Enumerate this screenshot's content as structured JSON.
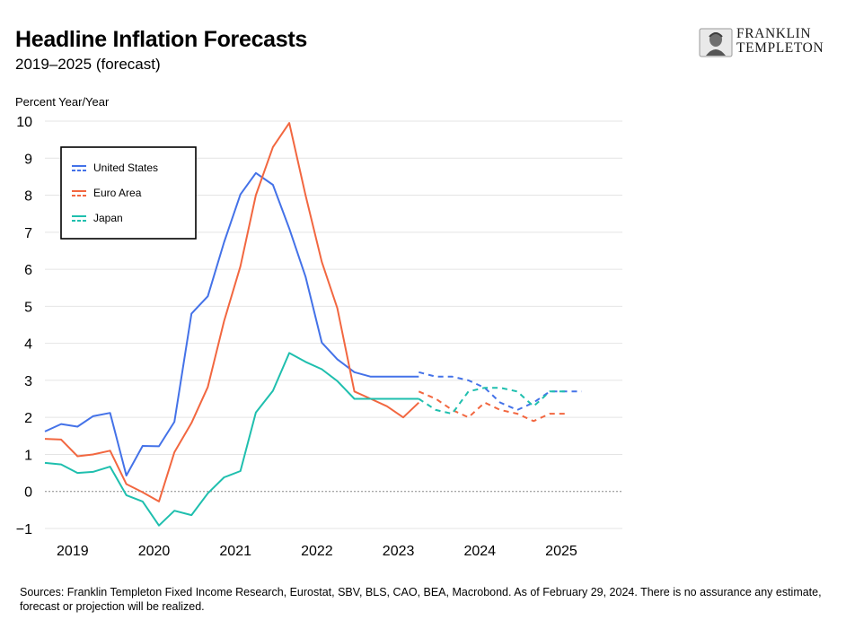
{
  "header": {
    "title": "Headline Inflation Forecasts",
    "subtitle": "2019–2025 (forecast)"
  },
  "brand": {
    "line1": "FRANKLIN",
    "line2": "TEMPLETON",
    "icon": "benjamin-franklin-portrait-icon"
  },
  "footer": {
    "sources": "Sources: Franklin Templeton Fixed Income Research, Eurostat, SBV, BLS, CAO, BEA, Macrobond. As of February 29, 2024. There is no assurance any estimate, forecast or projection will be realized."
  },
  "chart_data": {
    "type": "line",
    "title": "Headline Inflation Forecasts",
    "subtitle": "2019–2025 (forecast)",
    "ylabel": "Percent Year/Year",
    "xlabel": "",
    "ylim": [
      -1,
      10
    ],
    "yticks": [
      -1,
      0,
      1,
      2,
      3,
      4,
      5,
      6,
      7,
      8,
      9,
      10
    ],
    "xlim": [
      2018.66,
      2025.75
    ],
    "xticks": [
      {
        "label": "2019",
        "value": 2019.0
      },
      {
        "label": "2020",
        "value": 2020.0
      },
      {
        "label": "2021",
        "value": 2021.0
      },
      {
        "label": "2022",
        "value": 2022.0
      },
      {
        "label": "2023",
        "value": 2023.0
      },
      {
        "label": "2024",
        "value": 2024.0
      },
      {
        "label": "2025",
        "value": 2025.0
      }
    ],
    "grid": true,
    "zero_line": "dotted",
    "legend_position": "top-left",
    "legend_style": "solid-over-dashed",
    "series": [
      {
        "name": "United States",
        "color": "#4472e8",
        "actual": {
          "x": [
            2018.66,
            2018.86,
            2019.06,
            2019.25,
            2019.46,
            2019.66,
            2019.86,
            2020.06,
            2020.25,
            2020.46,
            2020.66,
            2020.86,
            2021.06,
            2021.25,
            2021.46,
            2021.66,
            2021.86,
            2022.06,
            2022.25,
            2022.46,
            2022.66,
            2022.86,
            2023.06,
            2023.25
          ],
          "y": [
            1.62,
            1.82,
            1.75,
            2.03,
            2.12,
            0.43,
            1.23,
            1.22,
            1.88,
            4.8,
            5.27,
            6.73,
            8.02,
            8.6,
            8.28,
            7.1,
            5.8,
            4.02,
            3.57,
            3.22,
            3.1,
            3.1,
            3.1,
            3.1
          ]
        },
        "forecast": {
          "x": [
            2023.25,
            2023.46,
            2023.66,
            2023.86,
            2024.06,
            2024.25,
            2024.46,
            2024.66,
            2024.86,
            2025.06,
            2025.25
          ],
          "y": [
            3.22,
            3.1,
            3.1,
            3.0,
            2.8,
            2.4,
            2.2,
            2.4,
            2.7,
            2.7,
            2.7
          ]
        }
      },
      {
        "name": "Euro Area",
        "color": "#f26740",
        "actual": {
          "x": [
            2018.66,
            2018.86,
            2019.06,
            2019.25,
            2019.46,
            2019.66,
            2019.86,
            2020.06,
            2020.25,
            2020.46,
            2020.66,
            2020.86,
            2021.06,
            2021.25,
            2021.46,
            2021.66,
            2021.86,
            2022.06,
            2022.25,
            2022.46,
            2022.66,
            2022.86,
            2023.06,
            2023.25
          ],
          "y": [
            1.42,
            1.4,
            0.95,
            1.0,
            1.1,
            0.2,
            -0.02,
            -0.27,
            1.06,
            1.85,
            2.82,
            4.6,
            6.08,
            8.0,
            9.3,
            9.95,
            8.0,
            6.2,
            4.95,
            2.7,
            2.5,
            2.3,
            2.0,
            2.4
          ]
        },
        "forecast": {
          "x": [
            2023.25,
            2023.46,
            2023.66,
            2023.86,
            2024.06,
            2024.25,
            2024.46,
            2024.66,
            2024.86,
            2025.06
          ],
          "y": [
            2.7,
            2.5,
            2.2,
            2.0,
            2.4,
            2.2,
            2.1,
            1.9,
            2.1,
            2.1
          ]
        }
      },
      {
        "name": "Japan",
        "color": "#1fbfae",
        "actual": {
          "x": [
            2018.66,
            2018.86,
            2019.06,
            2019.25,
            2019.46,
            2019.66,
            2019.86,
            2020.06,
            2020.25,
            2020.46,
            2020.66,
            2020.86,
            2021.06,
            2021.25,
            2021.46,
            2021.66,
            2021.86,
            2022.06,
            2022.25,
            2022.46,
            2022.66,
            2022.86,
            2023.06,
            2023.25
          ],
          "y": [
            0.77,
            0.73,
            0.5,
            0.53,
            0.67,
            -0.1,
            -0.27,
            -0.92,
            -0.52,
            -0.64,
            -0.05,
            0.38,
            0.55,
            2.13,
            2.72,
            3.74,
            3.5,
            3.3,
            2.98,
            2.5,
            2.5,
            2.5,
            2.5,
            2.5
          ]
        },
        "forecast": {
          "x": [
            2023.25,
            2023.46,
            2023.66,
            2023.86,
            2024.06,
            2024.25,
            2024.46,
            2024.66,
            2024.86,
            2025.06
          ],
          "y": [
            2.5,
            2.2,
            2.1,
            2.7,
            2.8,
            2.8,
            2.7,
            2.3,
            2.7,
            2.7
          ]
        }
      }
    ]
  }
}
